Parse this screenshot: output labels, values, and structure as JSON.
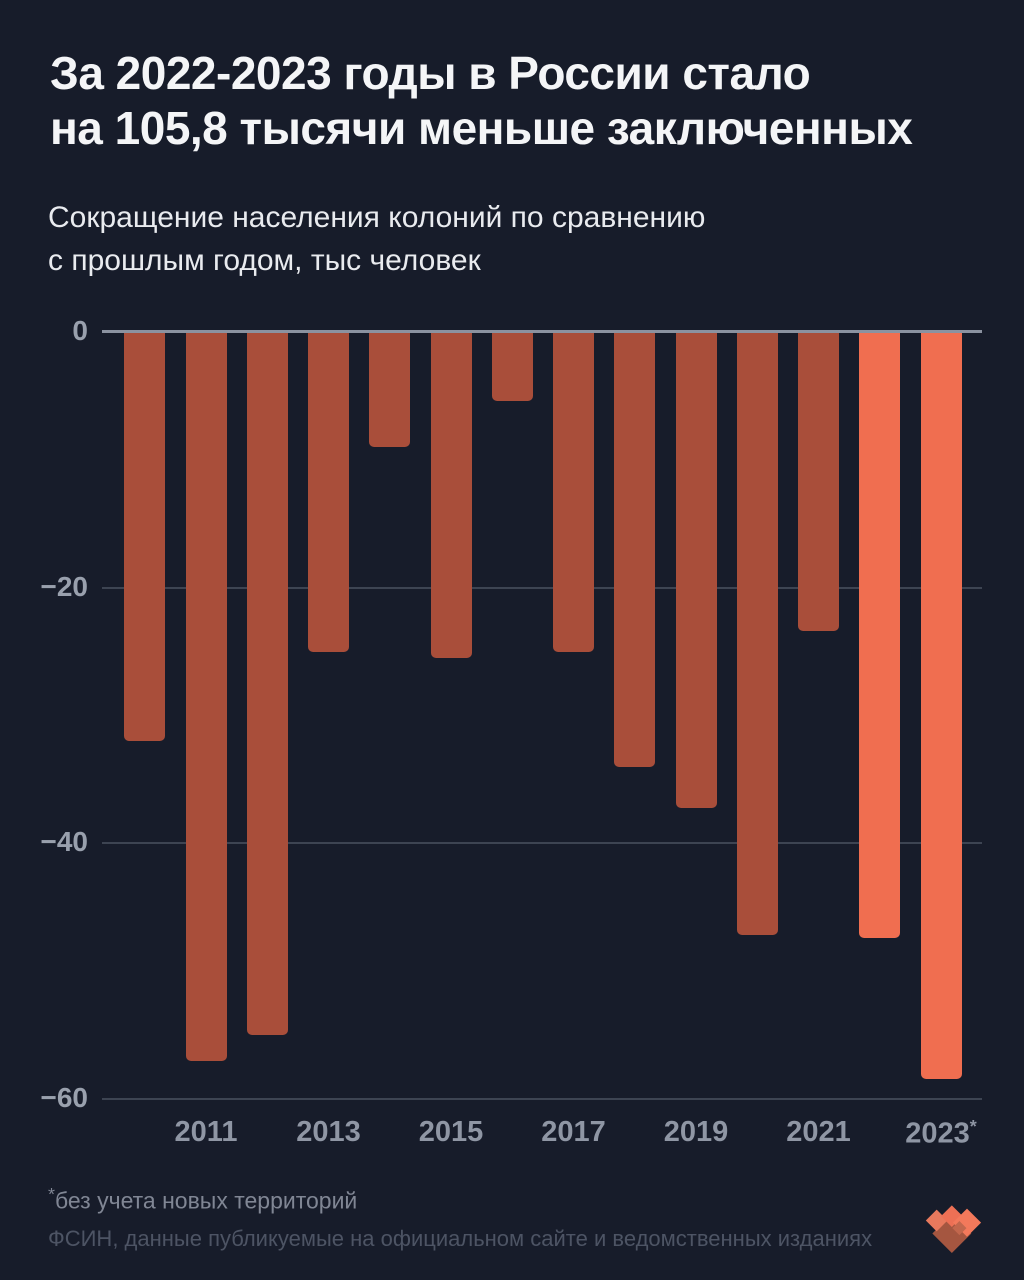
{
  "page": {
    "title_line1": "За 2022-2023 годы в России стало",
    "title_line2": "на 105,8 тысячи меньше заключенных",
    "subtitle_line1": "Сокращение населения колоний по сравнению",
    "subtitle_line2": "с прошлым годом, тыс человек",
    "footnote_marker": "*",
    "footnote_text": "без учета новых территорий",
    "source_text": "ФСИН, данные публикуемые на официальном сайте и ведомственных изданиях"
  },
  "colors": {
    "background": "#171c2a",
    "title": "#f4f5f7",
    "subtitle": "#e9ebef",
    "axis_zero_line": "#8b92a0",
    "gridline": "#3d4452",
    "tick_label": "#99a0ad",
    "footnote": "#808694",
    "source": "#4d5464",
    "logo": [
      "#a55640",
      "#e8795d",
      "#ed7055",
      "#f3795b",
      "#c2674d"
    ]
  },
  "chart_data": {
    "type": "bar",
    "title": "За 2022-2023 годы в России стало на 105,8 тысячи меньше заключенных",
    "subtitle": "Сокращение населения колоний по сравнению с прошлым годом, тыс человек",
    "xlabel": "",
    "ylabel": "тыс человек",
    "categories": [
      2010,
      2011,
      2012,
      2013,
      2014,
      2015,
      2016,
      2017,
      2018,
      2019,
      2020,
      2021,
      2022,
      2023
    ],
    "values": [
      -32,
      -57,
      -55,
      -25,
      -9,
      -25.5,
      -5.4,
      -25,
      -34,
      -37.2,
      -47.2,
      -23.4,
      -47.4,
      -58.4
    ],
    "highlight_years": [
      2022,
      2023
    ],
    "bar_color": "#a94e3a",
    "highlight_color": "#f06e50",
    "ylim": [
      -60,
      0
    ],
    "grid": "horizontal",
    "legend": "none",
    "yticks": [
      {
        "value": 0,
        "label": "0"
      },
      {
        "value": -20,
        "label": "−20"
      },
      {
        "value": -40,
        "label": "−40"
      },
      {
        "value": -60,
        "label": "−60"
      }
    ],
    "x_tick_labels": [
      {
        "year": 2011,
        "label": "2011"
      },
      {
        "year": 2013,
        "label": "2013"
      },
      {
        "year": 2015,
        "label": "2015"
      },
      {
        "year": 2017,
        "label": "2017"
      },
      {
        "year": 2019,
        "label": "2019"
      },
      {
        "year": 2021,
        "label": "2021"
      },
      {
        "year": 2023,
        "label": "2023",
        "sup": "*"
      }
    ]
  }
}
